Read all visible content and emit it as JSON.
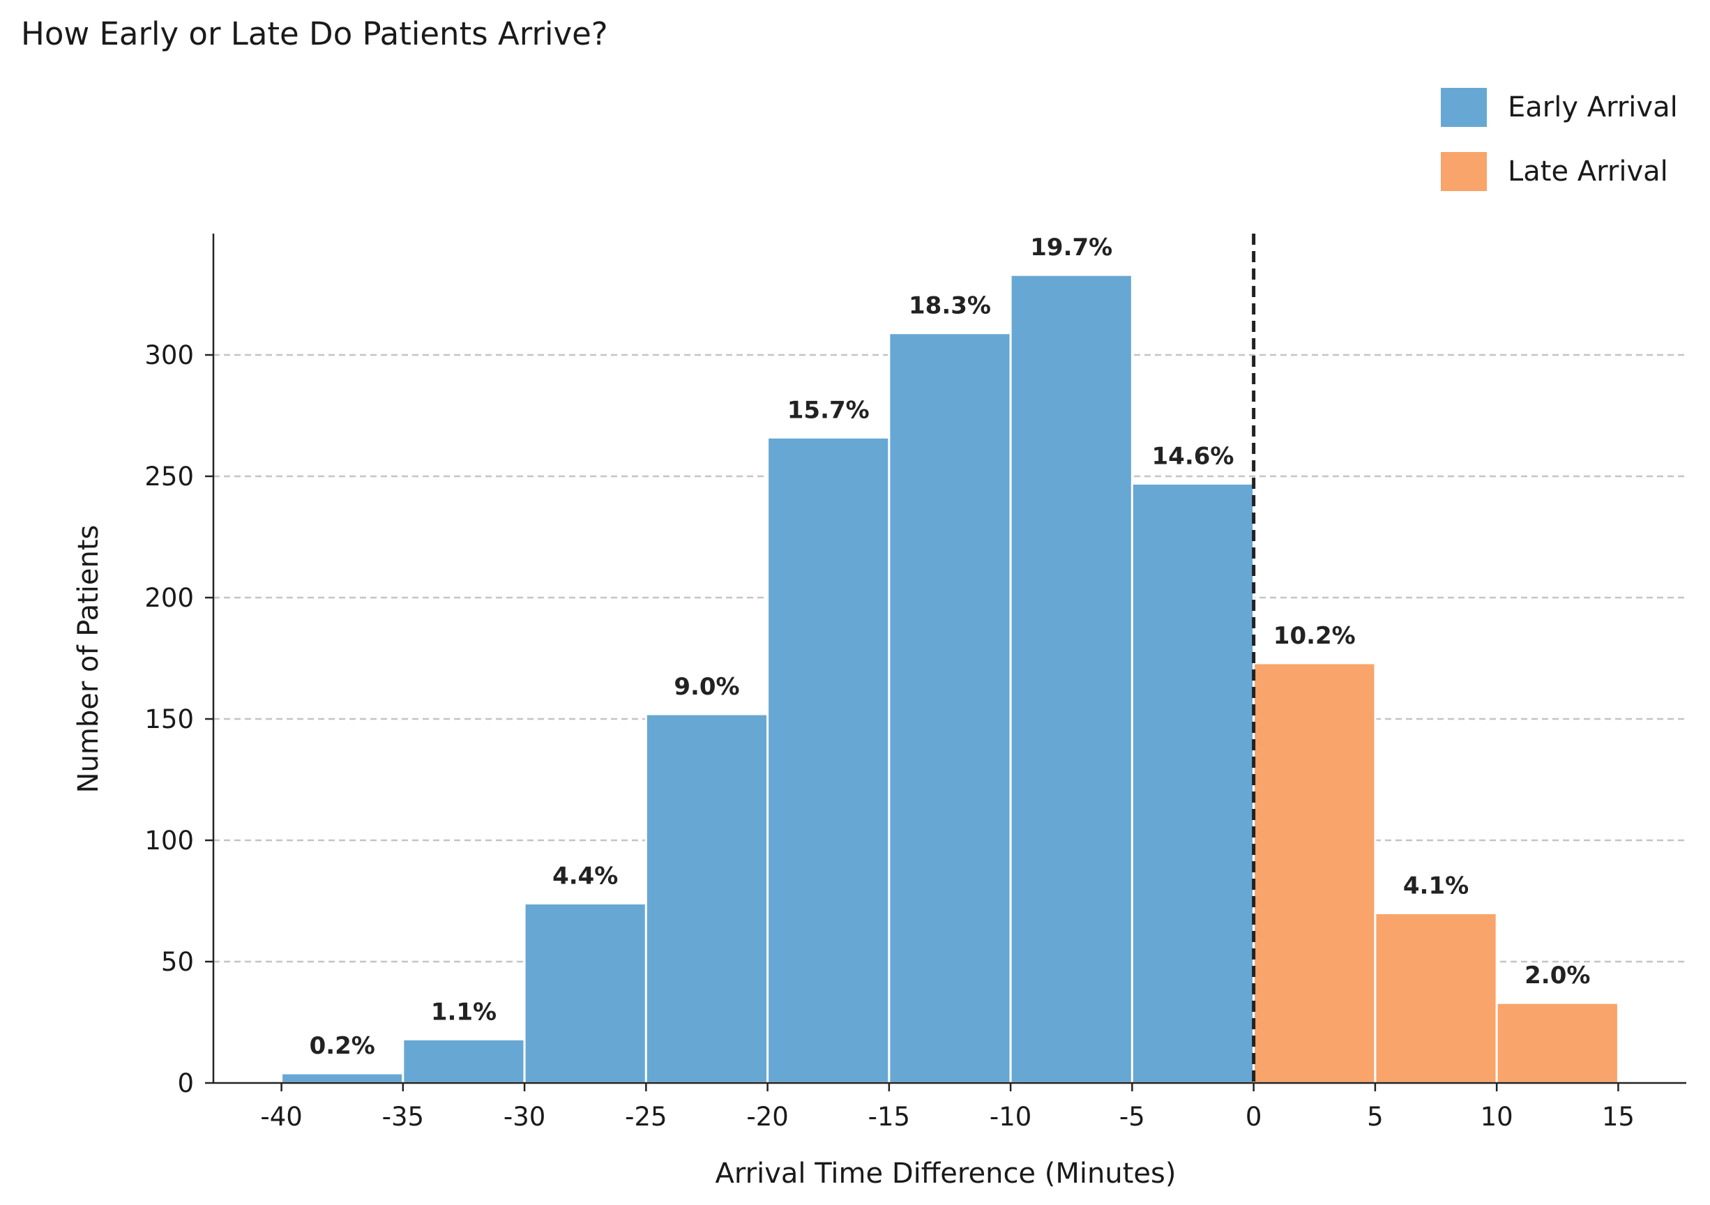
{
  "title": "How Early or Late Do Patients Arrive?",
  "colors": {
    "early": "#67a7d3",
    "late": "#f8a46a",
    "zero_line": "#222222",
    "grid": "#c4c4c4"
  },
  "legend": {
    "placement": "top-right",
    "items": [
      {
        "label": "Early Arrival",
        "color_key": "early"
      },
      {
        "label": "Late Arrival",
        "color_key": "late"
      }
    ]
  },
  "chart_data": {
    "type": "bar",
    "title": "How Early or Late Do Patients Arrive?",
    "xlabel": "Arrival Time Difference (Minutes)",
    "ylabel": "Number of Patients",
    "xlim": [
      -42.8,
      17.8
    ],
    "ylim": [
      0,
      350
    ],
    "xticks": [
      -40,
      -35,
      -30,
      -25,
      -20,
      -15,
      -10,
      -5,
      0,
      5,
      10,
      15
    ],
    "yticks": [
      0,
      50,
      100,
      150,
      200,
      250,
      300
    ],
    "grid": "y-dashed",
    "reference_line": {
      "x": 0,
      "style": "dashed"
    },
    "bin_edges": [
      -40,
      -35,
      -30,
      -25,
      -20,
      -15,
      -10,
      -5,
      0,
      5,
      10,
      15
    ],
    "series": [
      {
        "name": "Early Arrival",
        "color_key": "early",
        "bins": [
          {
            "start": -40,
            "end": -35,
            "value": 4,
            "label": "0.2%"
          },
          {
            "start": -35,
            "end": -30,
            "value": 18,
            "label": "1.1%"
          },
          {
            "start": -30,
            "end": -25,
            "value": 74,
            "label": "4.4%"
          },
          {
            "start": -25,
            "end": -20,
            "value": 152,
            "label": "9.0%"
          },
          {
            "start": -20,
            "end": -15,
            "value": 266,
            "label": "15.7%"
          },
          {
            "start": -15,
            "end": -10,
            "value": 309,
            "label": "18.3%"
          },
          {
            "start": -10,
            "end": -5,
            "value": 333,
            "label": "19.7%"
          },
          {
            "start": -5,
            "end": 0,
            "value": 247,
            "label": "14.6%"
          }
        ]
      },
      {
        "name": "Late Arrival",
        "color_key": "late",
        "bins": [
          {
            "start": 0,
            "end": 5,
            "value": 173,
            "label": "10.2%"
          },
          {
            "start": 5,
            "end": 10,
            "value": 70,
            "label": "4.1%"
          },
          {
            "start": 10,
            "end": 15,
            "value": 33,
            "label": "2.0%"
          }
        ]
      }
    ]
  }
}
